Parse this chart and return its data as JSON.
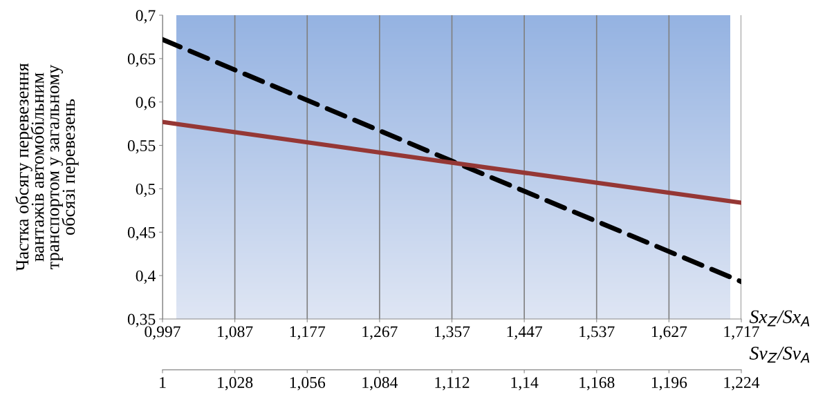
{
  "chart_data": {
    "type": "line",
    "ylabel": "Частка обсягу перевезення\nвантажів автомобільним\nтранспортом у загальному\nобсязі перевезень",
    "xlabel": "Sx$_{Z}$/Sx$_{A}$",
    "x2label": "Sv$_{Z}$/Sv$_{A}$",
    "series": [
      {
        "color": "#000000",
        "line_style": "dashed",
        "x": [
          0.997,
          1.357,
          1.717
        ],
        "values": [
          0.672,
          0.532,
          0.393
        ]
      },
      {
        "color": "#953735",
        "line_style": "solid",
        "x": [
          0.997,
          1.357,
          1.717
        ],
        "values": [
          0.577,
          0.53,
          0.484
        ]
      }
    ],
    "xlim": [
      0.997,
      1.717
    ],
    "xticks": [
      {
        "value": 0.997,
        "label": "0,997"
      },
      {
        "value": 1.087,
        "label": "1,087"
      },
      {
        "value": 1.177,
        "label": "1,177"
      },
      {
        "value": 1.267,
        "label": "1,267"
      },
      {
        "value": 1.357,
        "label": "1,357"
      },
      {
        "value": 1.447,
        "label": "1,447"
      },
      {
        "value": 1.537,
        "label": "1,537"
      },
      {
        "value": 1.627,
        "label": "1,627"
      },
      {
        "value": 1.717,
        "label": "1,717"
      }
    ],
    "x2lim": [
      1,
      1.224
    ],
    "x2ticks": [
      1,
      {
        "value": 1.028,
        "label": "1,028"
      },
      {
        "value": 1.056,
        "label": "1,056"
      },
      {
        "value": 1.084,
        "label": "1,084"
      },
      {
        "value": 1.112,
        "label": "1,112"
      },
      {
        "value": 1.14,
        "label": "1,14"
      },
      {
        "value": 1.168,
        "label": "1,168"
      },
      {
        "value": 1.196,
        "label": "1,196"
      },
      {
        "value": 1.224,
        "label": "1,224"
      }
    ],
    "ylim": [
      0.35,
      0.7
    ],
    "yticks": [
      {
        "value": 0.35,
        "label": "0,35"
      },
      {
        "value": 0.4,
        "label": "0,4"
      },
      {
        "value": 0.45,
        "label": "0,45"
      },
      {
        "value": 0.5,
        "label": "0,5"
      },
      {
        "value": 0.55,
        "label": "0,55"
      },
      {
        "value": 0.6,
        "label": "0,6"
      },
      {
        "value": 0.65,
        "label": "0,65"
      },
      {
        "value": 0.7,
        "label": "0,7"
      }
    ],
    "grid": "x",
    "legend": false
  }
}
